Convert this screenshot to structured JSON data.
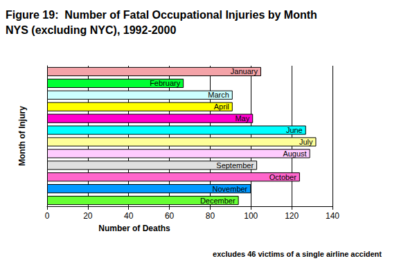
{
  "chart_data": {
    "type": "bar",
    "orientation": "horizontal",
    "title": "Figure 19:  Number of Fatal Occupational Injuries by Month",
    "subtitle": "NYS (excluding NYC), 1992-2000",
    "x_label": "Number of Deaths",
    "y_label": "Month of Injury",
    "annotation": "excludes 46 victims of a single airline accident",
    "categories": [
      "January",
      "February",
      "March",
      "April",
      "May",
      "June",
      "July",
      "August",
      "September",
      "October",
      "November",
      "December"
    ],
    "values": [
      105,
      67,
      91,
      91,
      101,
      127,
      132,
      129,
      103,
      124,
      100,
      94
    ],
    "colors": [
      "#f4a3a8",
      "#00ff33",
      "#ccffff",
      "#ffff00",
      "#ff00cc",
      "#00ffff",
      "#ffff99",
      "#ffccff",
      "#e0e0e0",
      "#ff66cc",
      "#0099ff",
      "#66ff33"
    ],
    "xlim": [
      0,
      140
    ],
    "xticks": [
      0,
      20,
      40,
      60,
      80,
      100,
      120,
      140
    ],
    "grid": true,
    "tick_labels": "x"
  }
}
